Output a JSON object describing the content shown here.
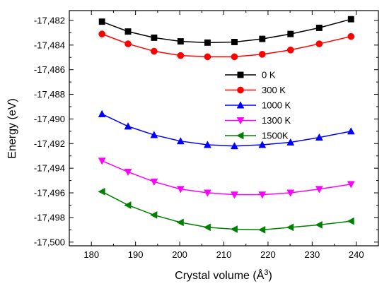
{
  "chart_data": {
    "type": "line",
    "xlabel": "Crystal volume (Å",
    "xlabel_unit_sup": "3",
    "xlabel_suffix": ")",
    "ylabel": "Energy (eV)",
    "xlim": [
      175,
      245
    ],
    "ylim": [
      -17500.3,
      -17481.2
    ],
    "x_ticks": [
      180,
      190,
      200,
      210,
      220,
      230,
      240
    ],
    "x_tick_labels": [
      "180",
      "190",
      "200",
      "210",
      "220",
      "230",
      "240"
    ],
    "y_ticks": [
      -17482,
      -17484,
      -17486,
      -17488,
      -17490,
      -17492,
      -17494,
      -17496,
      -17498,
      -17500
    ],
    "y_tick_labels": [
      "-17,482",
      "-17,484",
      "-17,486",
      "-17,488",
      "-17,490",
      "-17,492",
      "-17,494",
      "-17,496",
      "-17,498",
      "-17,500"
    ],
    "grid": false,
    "legend_position": "top-center",
    "x": [
      182.4,
      188.3,
      194.2,
      200.2,
      206.3,
      212.4,
      218.7,
      225.1,
      231.6,
      238.8
    ],
    "series": [
      {
        "name": "0 K",
        "color": "#000000",
        "marker": "square",
        "values": [
          -17482.1,
          -17482.9,
          -17483.4,
          -17483.7,
          -17483.8,
          -17483.75,
          -17483.5,
          -17483.1,
          -17482.6,
          -17481.9
        ]
      },
      {
        "name": "300 K",
        "color": "#ff0000",
        "marker": "circle",
        "values": [
          -17483.1,
          -17483.9,
          -17484.5,
          -17484.85,
          -17484.95,
          -17484.95,
          -17484.75,
          -17484.4,
          -17483.9,
          -17483.3
        ]
      },
      {
        "name": "1000 K",
        "color": "#0000ff",
        "marker": "triangle-up",
        "values": [
          -17489.6,
          -17490.6,
          -17491.3,
          -17491.8,
          -17492.1,
          -17492.2,
          -17492.1,
          -17491.9,
          -17491.5,
          -17491.0
        ]
      },
      {
        "name": "1300 K",
        "color": "#ff00ff",
        "marker": "triangle-down",
        "values": [
          -17493.4,
          -17494.3,
          -17495.1,
          -17495.7,
          -17496.0,
          -17496.15,
          -17496.15,
          -17496.0,
          -17495.7,
          -17495.3
        ]
      },
      {
        "name": "1500K",
        "color": "#008000",
        "marker": "triangle-left",
        "values": [
          -17495.9,
          -17497.0,
          -17497.8,
          -17498.4,
          -17498.8,
          -17498.95,
          -17499.0,
          -17498.8,
          -17498.6,
          -17498.3
        ]
      }
    ]
  }
}
